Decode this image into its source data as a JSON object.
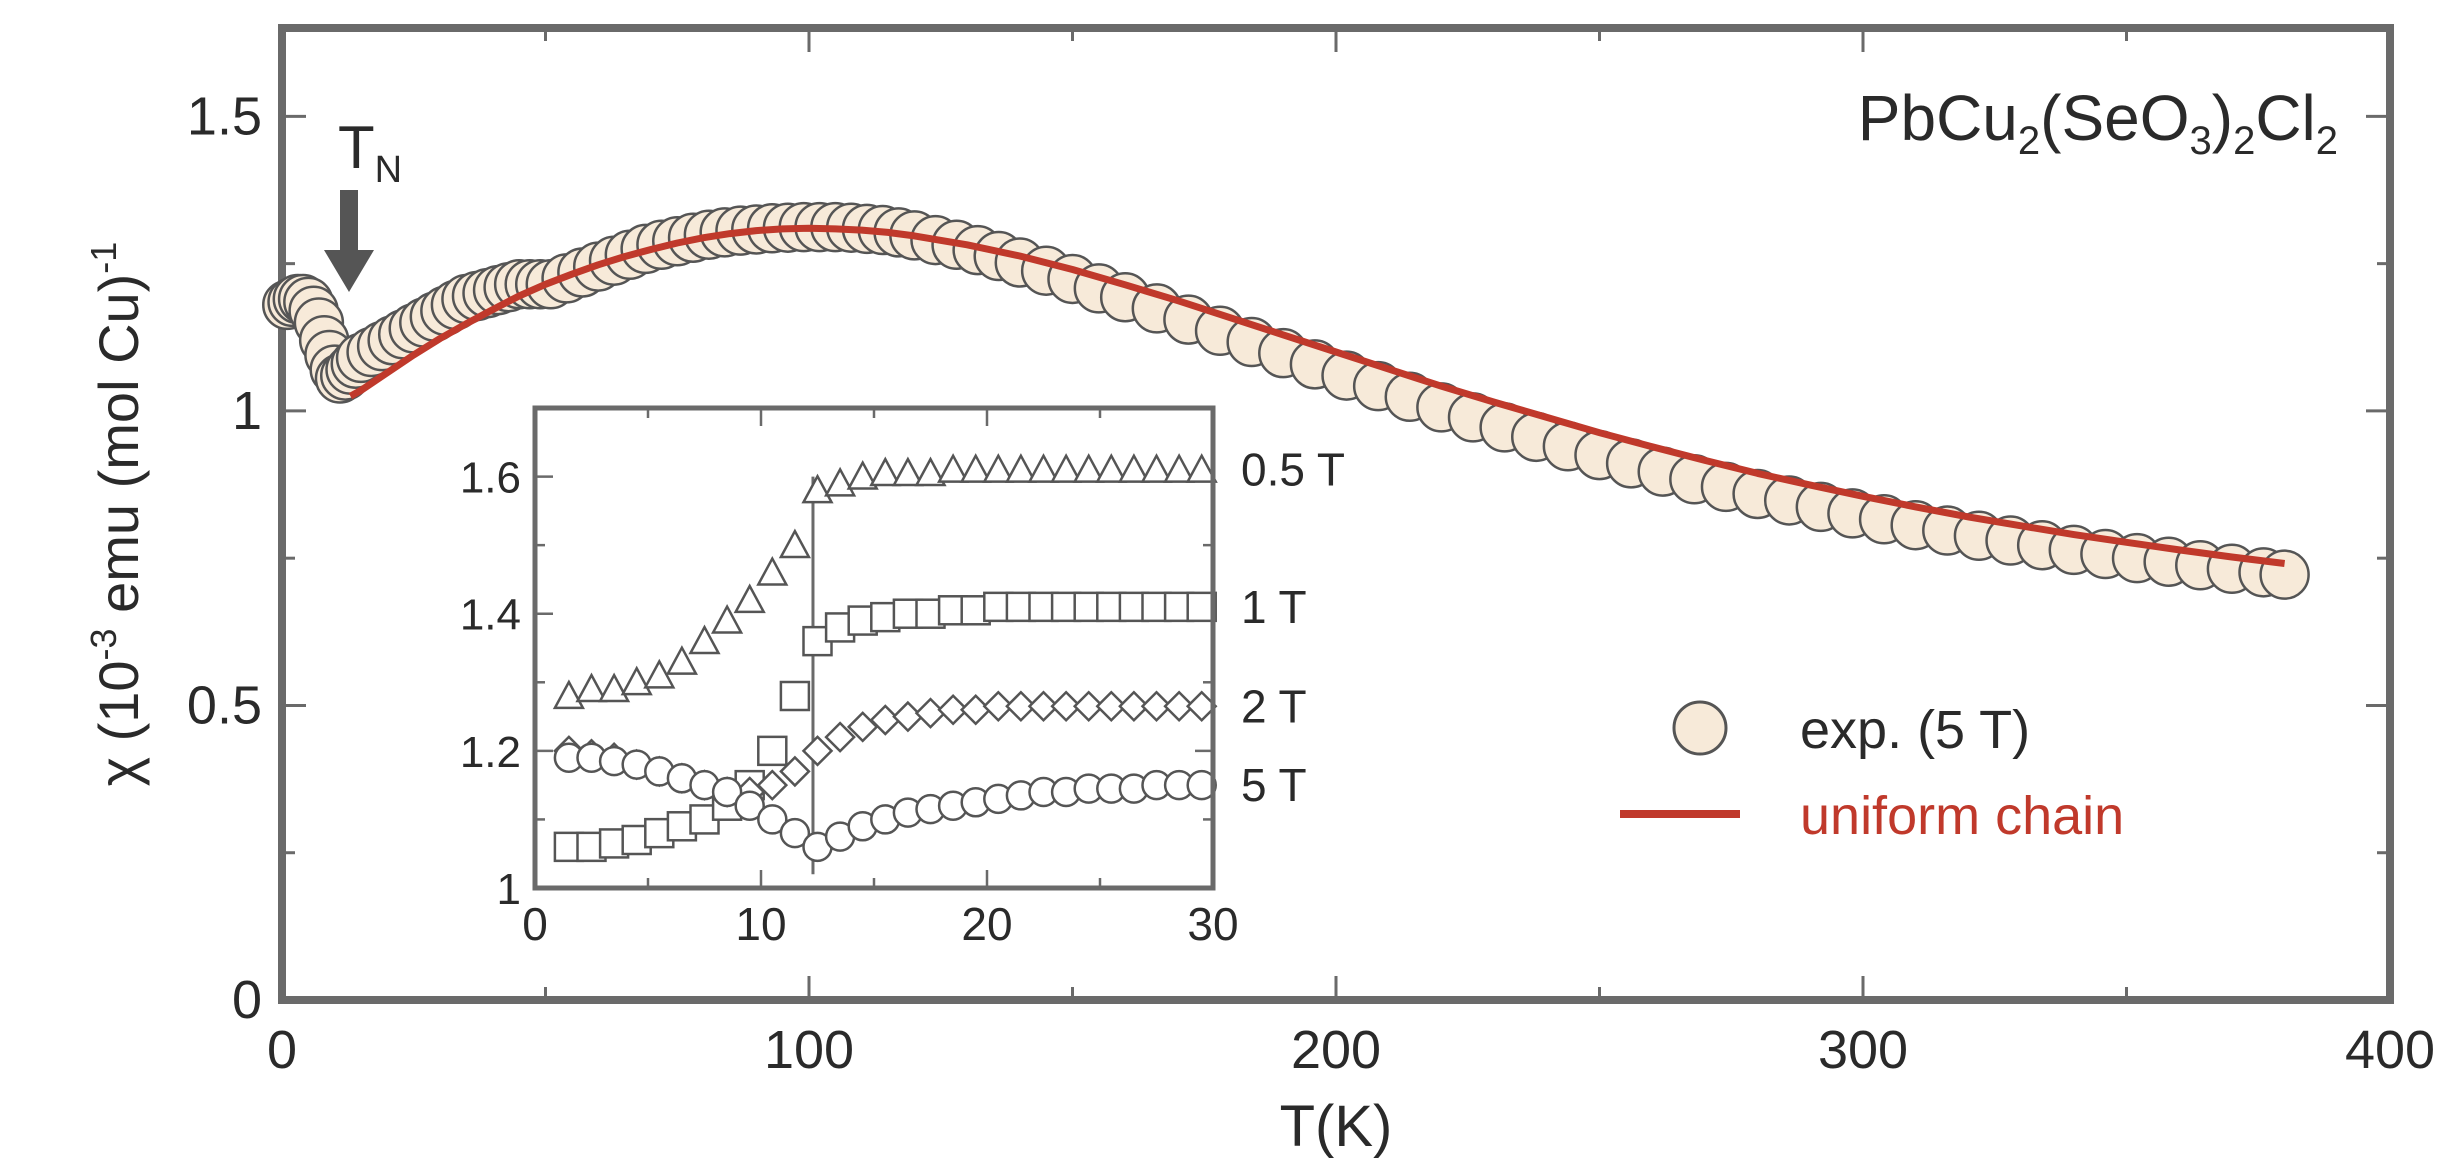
{
  "colors": {
    "fit_line": "#c0392b",
    "marker_fill": "#f7ead9",
    "marker_stroke": "#555555",
    "axis": "#6a6a6a",
    "text": "#2a2a2a"
  },
  "chart_data": [
    {
      "type": "scatter",
      "role": "main",
      "compound": {
        "base": "PbCu",
        "s1": "2",
        "mid": "(SeO",
        "s2": "3",
        "mid2": ")",
        "s3": "2",
        "tail": "Cl",
        "s4": "2"
      },
      "xlabel": "T(K)",
      "ylabel": {
        "pre": "χ (10",
        "exp1": "-3",
        "mid": " emu (mol Cu)",
        "exp2": "-1"
      },
      "xlim": [
        0,
        400
      ],
      "ylim": [
        0,
        1.65
      ],
      "xticks": [
        0,
        100,
        200,
        300,
        400
      ],
      "yticks": [
        0,
        0.5,
        1,
        1.5
      ],
      "ytick_labels": [
        "0",
        "0.5",
        "1",
        "1.5"
      ],
      "annotation": {
        "text": "T",
        "sub": "N",
        "x": 12
      },
      "legend": {
        "position": "lower-right",
        "entries": [
          {
            "label": "exp. (5 T)",
            "kind": "marker"
          },
          {
            "label": "uniform chain",
            "kind": "line"
          }
        ]
      },
      "series": [
        {
          "name": "exp. (5 T)",
          "kind": "circle",
          "x": [
            1,
            2,
            3,
            4,
            5,
            6,
            7,
            8,
            9,
            10,
            11,
            12,
            13,
            14,
            15,
            17,
            19,
            21,
            23,
            25,
            27,
            29,
            31,
            33,
            35,
            37,
            39,
            41,
            43,
            45,
            47,
            49,
            51,
            54,
            57,
            60,
            63,
            66,
            69,
            72,
            75,
            78,
            81,
            84,
            87,
            90,
            93,
            96,
            99,
            102,
            105,
            108,
            111,
            114,
            117,
            120,
            124,
            128,
            132,
            136,
            140,
            145,
            150,
            155,
            160,
            166,
            172,
            178,
            184,
            190,
            196,
            202,
            208,
            214,
            220,
            226,
            232,
            238,
            244,
            250,
            256,
            262,
            268,
            274,
            280,
            286,
            292,
            298,
            304,
            310,
            316,
            322,
            328,
            334,
            340,
            346,
            352,
            358,
            364,
            370,
            376,
            380
          ],
          "y": [
            1.18,
            1.185,
            1.19,
            1.19,
            1.185,
            1.17,
            1.15,
            1.12,
            1.095,
            1.07,
            1.055,
            1.06,
            1.07,
            1.08,
            1.09,
            1.1,
            1.11,
            1.12,
            1.13,
            1.14,
            1.15,
            1.16,
            1.17,
            1.18,
            1.19,
            1.195,
            1.2,
            1.205,
            1.21,
            1.215,
            1.215,
            1.215,
            1.215,
            1.225,
            1.235,
            1.245,
            1.255,
            1.265,
            1.275,
            1.282,
            1.288,
            1.294,
            1.299,
            1.303,
            1.306,
            1.308,
            1.31,
            1.311,
            1.312,
            1.312,
            1.312,
            1.311,
            1.309,
            1.307,
            1.303,
            1.298,
            1.29,
            1.282,
            1.273,
            1.263,
            1.252,
            1.238,
            1.224,
            1.208,
            1.193,
            1.174,
            1.155,
            1.136,
            1.117,
            1.098,
            1.079,
            1.06,
            1.042,
            1.024,
            1.006,
            0.989,
            0.972,
            0.956,
            0.94,
            0.925,
            0.911,
            0.897,
            0.884,
            0.871,
            0.859,
            0.848,
            0.837,
            0.826,
            0.816,
            0.806,
            0.797,
            0.788,
            0.78,
            0.772,
            0.764,
            0.757,
            0.75,
            0.744,
            0.738,
            0.732,
            0.726,
            0.722
          ]
        },
        {
          "name": "uniform chain",
          "kind": "line",
          "x": [
            13,
            15,
            20,
            25,
            30,
            35,
            40,
            45,
            50,
            55,
            60,
            65,
            70,
            75,
            80,
            85,
            90,
            95,
            100,
            105,
            110,
            115,
            120,
            130,
            140,
            150,
            160,
            170,
            180,
            190,
            200,
            210,
            220,
            230,
            240,
            250,
            260,
            270,
            280,
            290,
            300,
            310,
            320,
            330,
            340,
            350,
            360,
            370,
            380
          ],
          "y": [
            1.025,
            1.035,
            1.065,
            1.095,
            1.123,
            1.148,
            1.172,
            1.195,
            1.215,
            1.232,
            1.248,
            1.262,
            1.274,
            1.285,
            1.294,
            1.301,
            1.306,
            1.309,
            1.31,
            1.309,
            1.307,
            1.303,
            1.297,
            1.282,
            1.263,
            1.24,
            1.214,
            1.187,
            1.158,
            1.129,
            1.1,
            1.071,
            1.042,
            1.015,
            0.989,
            0.963,
            0.939,
            0.916,
            0.894,
            0.874,
            0.855,
            0.837,
            0.82,
            0.805,
            0.79,
            0.777,
            0.764,
            0.752,
            0.741
          ]
        }
      ]
    },
    {
      "type": "scatter",
      "role": "inset",
      "xlim": [
        0,
        30
      ],
      "ylim": [
        1.0,
        1.7
      ],
      "xticks": [
        0,
        10,
        20,
        30
      ],
      "yticks": [
        1.0,
        1.2,
        1.4,
        1.6
      ],
      "ytick_labels": [
        "1",
        "1.2",
        "1.4",
        "1.6"
      ],
      "transition_x": 12.3,
      "series": [
        {
          "name": "0.5 T",
          "kind": "triangle",
          "x": [
            1.5,
            2.5,
            3.5,
            4.5,
            5.5,
            6.5,
            7.5,
            8.5,
            9.5,
            10.5,
            11.5,
            12.5,
            13.5,
            14.5,
            15.5,
            16.5,
            17.5,
            18.5,
            19.5,
            20.5,
            21.5,
            22.5,
            23.5,
            24.5,
            25.5,
            26.5,
            27.5,
            28.5,
            29.5
          ],
          "y": [
            1.28,
            1.29,
            1.29,
            1.3,
            1.31,
            1.33,
            1.36,
            1.39,
            1.42,
            1.46,
            1.5,
            1.58,
            1.59,
            1.6,
            1.605,
            1.605,
            1.605,
            1.61,
            1.61,
            1.61,
            1.61,
            1.61,
            1.61,
            1.61,
            1.61,
            1.61,
            1.61,
            1.61,
            1.61
          ]
        },
        {
          "name": "1 T",
          "kind": "square",
          "x": [
            1.5,
            2.5,
            3.5,
            4.5,
            5.5,
            6.5,
            7.5,
            8.5,
            9.5,
            10.5,
            11.5,
            12.5,
            13.5,
            14.5,
            15.5,
            16.5,
            17.5,
            18.5,
            19.5,
            20.5,
            21.5,
            22.5,
            23.5,
            24.5,
            25.5,
            26.5,
            27.5,
            28.5,
            29.5
          ],
          "y": [
            1.06,
            1.06,
            1.065,
            1.07,
            1.08,
            1.09,
            1.1,
            1.12,
            1.15,
            1.2,
            1.28,
            1.36,
            1.38,
            1.39,
            1.395,
            1.4,
            1.4,
            1.405,
            1.405,
            1.41,
            1.41,
            1.41,
            1.41,
            1.41,
            1.41,
            1.41,
            1.41,
            1.41,
            1.41
          ]
        },
        {
          "name": "2 T",
          "kind": "diamond",
          "x": [
            1.5,
            2.5,
            3.5,
            4.5,
            5.5,
            6.5,
            7.5,
            8.5,
            9.5,
            10.5,
            11.5,
            12.5,
            13.5,
            14.5,
            15.5,
            16.5,
            17.5,
            18.5,
            19.5,
            20.5,
            21.5,
            22.5,
            23.5,
            24.5,
            25.5,
            26.5,
            27.5,
            28.5,
            29.5
          ],
          "y": [
            1.2,
            1.195,
            1.19,
            1.18,
            1.17,
            1.16,
            1.15,
            1.14,
            1.14,
            1.15,
            1.17,
            1.2,
            1.22,
            1.235,
            1.245,
            1.25,
            1.255,
            1.26,
            1.26,
            1.265,
            1.265,
            1.265,
            1.265,
            1.265,
            1.265,
            1.265,
            1.265,
            1.265,
            1.265
          ]
        },
        {
          "name": "5 T",
          "kind": "circle",
          "x": [
            1.5,
            2.5,
            3.5,
            4.5,
            5.5,
            6.5,
            7.5,
            8.5,
            9.5,
            10.5,
            11.5,
            12.5,
            13.5,
            14.5,
            15.5,
            16.5,
            17.5,
            18.5,
            19.5,
            20.5,
            21.5,
            22.5,
            23.5,
            24.5,
            25.5,
            26.5,
            27.5,
            28.5,
            29.5
          ],
          "y": [
            1.19,
            1.19,
            1.185,
            1.18,
            1.17,
            1.16,
            1.15,
            1.14,
            1.12,
            1.1,
            1.08,
            1.06,
            1.075,
            1.09,
            1.1,
            1.11,
            1.115,
            1.12,
            1.125,
            1.13,
            1.135,
            1.14,
            1.14,
            1.145,
            1.145,
            1.145,
            1.15,
            1.15,
            1.15
          ]
        }
      ]
    }
  ]
}
